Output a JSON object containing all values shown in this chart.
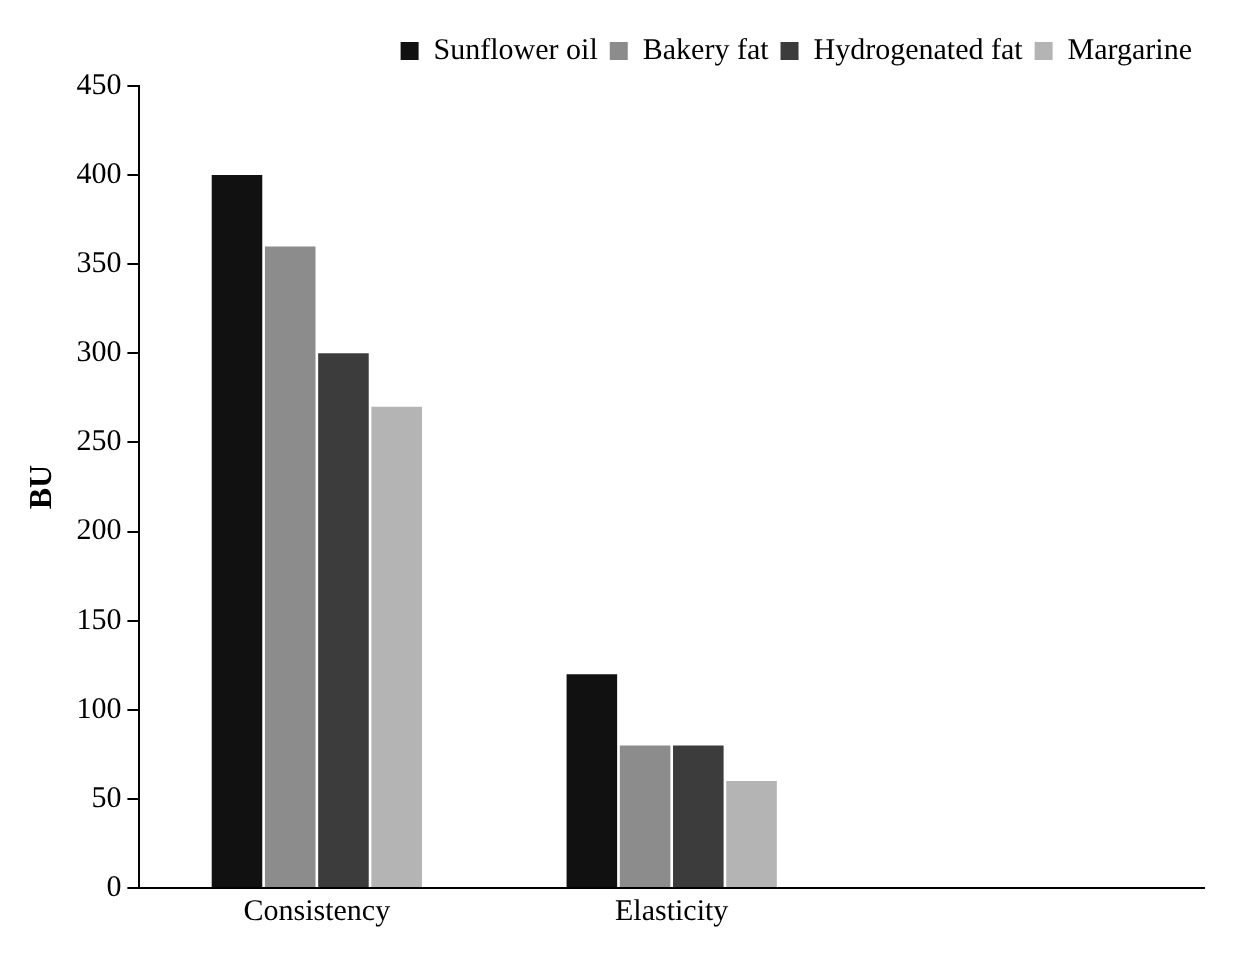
{
  "chart_data": {
    "type": "bar",
    "ylabel": "BU",
    "categories": [
      "Consistency",
      "Elasticity",
      null
    ],
    "series": [
      {
        "name": "Sunflower oil",
        "color": "#111111",
        "values": [
          400,
          120,
          null
        ]
      },
      {
        "name": "Bakery fat",
        "color": "#8c8c8c",
        "values": [
          360,
          80,
          null
        ]
      },
      {
        "name": "Hydrogenated fat",
        "color": "#3c3c3c",
        "values": [
          300,
          80,
          null
        ]
      },
      {
        "name": "Margarine",
        "color": "#b4b4b4",
        "values": [
          270,
          60,
          null
        ]
      }
    ],
    "ylim": [
      0,
      450
    ],
    "yticks": [
      0,
      50,
      100,
      150,
      200,
      250,
      300,
      350,
      400,
      450
    ],
    "grid": false,
    "legend": "top right"
  }
}
